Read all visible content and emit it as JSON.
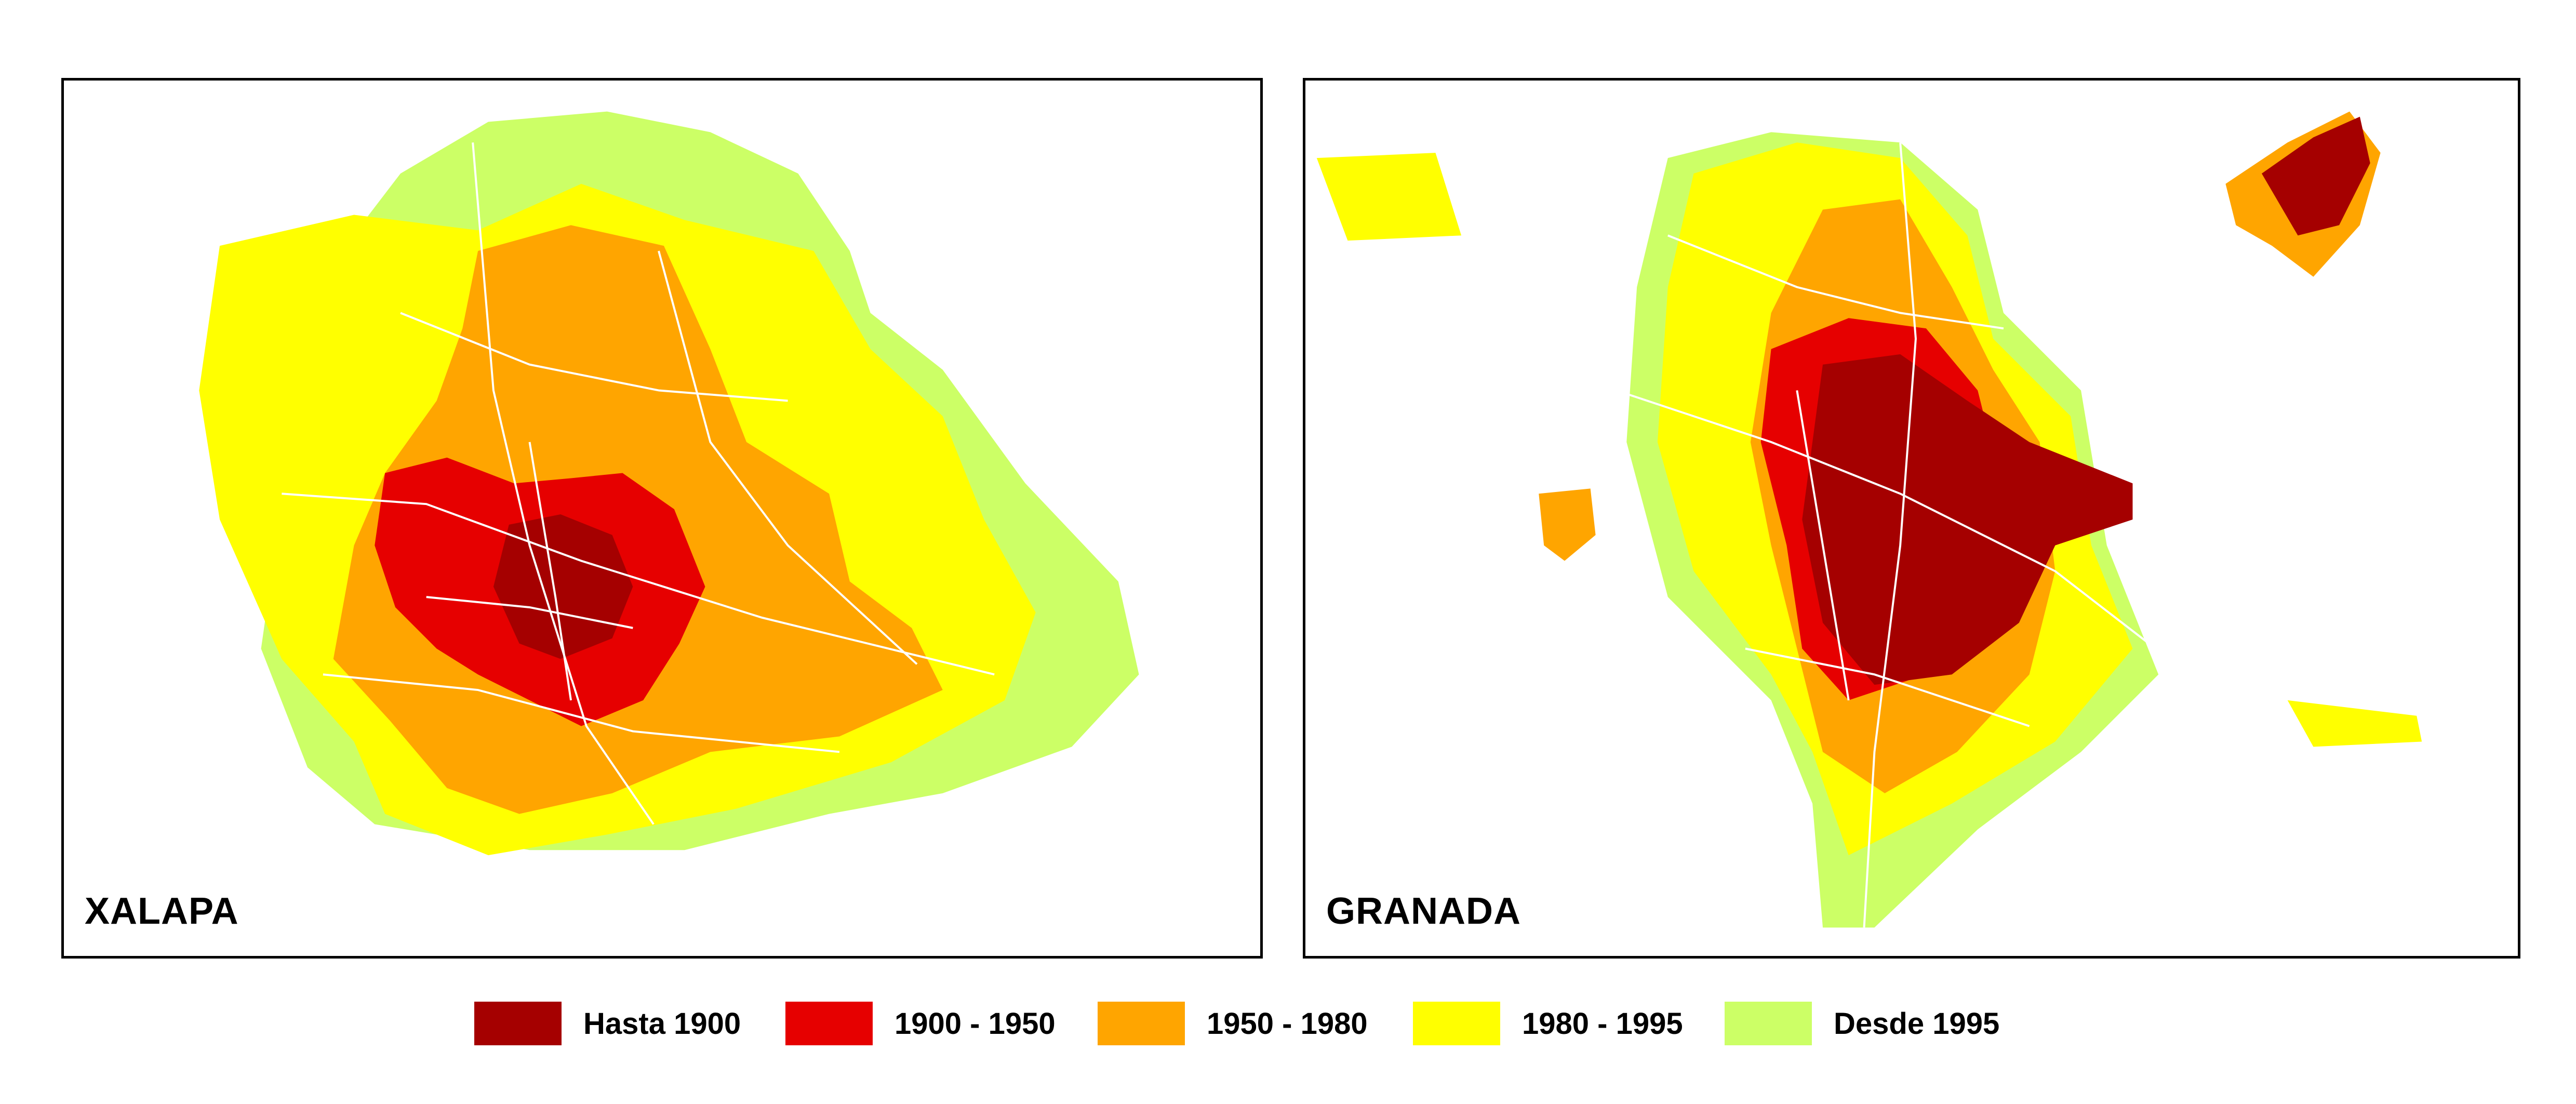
{
  "maps": [
    {
      "id": "xalapa",
      "label": "XALAPA"
    },
    {
      "id": "granada",
      "label": "GRANADA"
    }
  ],
  "legend": [
    {
      "label": "Hasta 1900",
      "color": "#a50000"
    },
    {
      "label": "1900 - 1950",
      "color": "#e60000"
    },
    {
      "label": "1950 - 1980",
      "color": "#ffa500"
    },
    {
      "label": "1980 - 1995",
      "color": "#ffff00"
    },
    {
      "label": "Desde 1995",
      "color": "#ccff66"
    }
  ]
}
